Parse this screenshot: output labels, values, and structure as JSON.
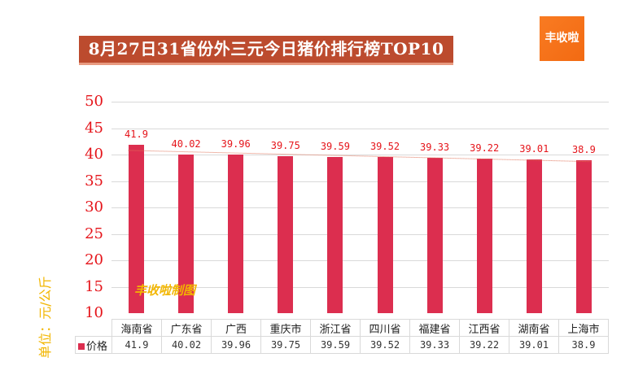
{
  "title": "8月27日31省份外三元今日猪价排行榜TOP10",
  "logo": {
    "text": "丰收啦",
    "color": "#f57420"
  },
  "watermark": "丰收啦制图",
  "bar_color": "#dc2e4f",
  "y_axis": {
    "label": "单位：元/公斤",
    "ticks": [
      "50",
      "45",
      "40",
      "35",
      "30",
      "25",
      "20",
      "15",
      "10"
    ]
  },
  "table": {
    "series_name": "价格",
    "categories": [
      "海南省",
      "广东省",
      "广西",
      "重庆市",
      "浙江省",
      "四川省",
      "福建省",
      "江西省",
      "湖南省",
      "上海市"
    ],
    "values": [
      "41.9",
      "40.02",
      "39.96",
      "39.75",
      "39.59",
      "39.52",
      "39.33",
      "39.22",
      "39.01",
      "38.9"
    ]
  },
  "chart_data": {
    "type": "bar",
    "title": "8月27日31省份外三元今日猪价排行榜TOP10",
    "xlabel": "",
    "ylabel": "单位：元/公斤",
    "ylim": [
      10,
      50
    ],
    "yticks": [
      10,
      15,
      20,
      25,
      30,
      35,
      40,
      45,
      50
    ],
    "grid": true,
    "legend": [
      "价格"
    ],
    "legend_position": "data-table",
    "categories": [
      "海南省",
      "广东省",
      "广西",
      "重庆市",
      "浙江省",
      "四川省",
      "福建省",
      "江西省",
      "湖南省",
      "上海市"
    ],
    "series": [
      {
        "name": "价格",
        "values": [
          41.9,
          40.02,
          39.96,
          39.75,
          39.59,
          39.52,
          39.33,
          39.22,
          39.01,
          38.9
        ]
      }
    ],
    "trendline": "linear (dotted)",
    "annotations": [
      "丰收啦制图"
    ]
  }
}
